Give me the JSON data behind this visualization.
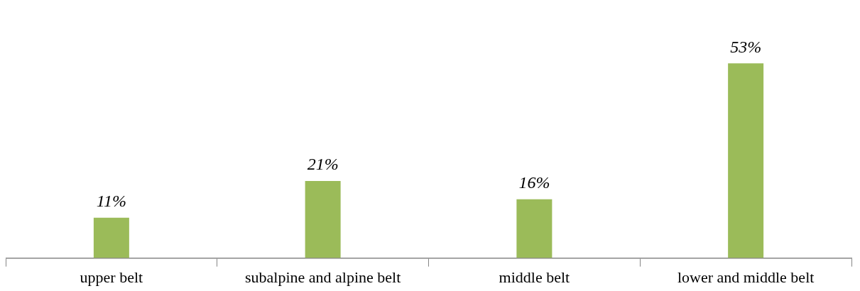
{
  "chart_data": {
    "type": "bar",
    "categories": [
      "upper belt",
      "subalpine and alpine belt",
      "middle belt",
      "lower and middle belt"
    ],
    "values": [
      11,
      21,
      16,
      53
    ],
    "value_labels": [
      "11%",
      "21%",
      "16%",
      "53%"
    ],
    "color": "#9bbb59",
    "grid": false,
    "legend": false
  }
}
